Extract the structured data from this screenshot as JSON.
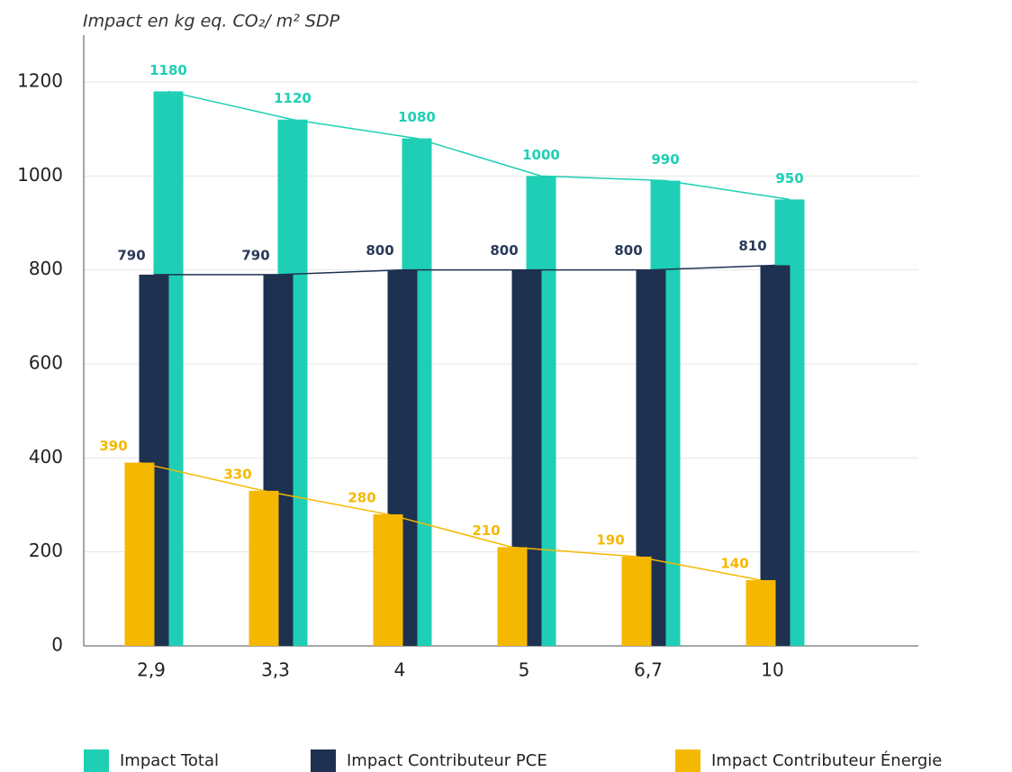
{
  "chart_data": {
    "type": "bar",
    "y_label": "Impact en kg eq. CO₂/ m² SDP",
    "categories": [
      "2,9",
      "3,3",
      "4",
      "5",
      "6,7",
      "10"
    ],
    "series": [
      {
        "name": "Impact Total",
        "color": "#1ecfb5",
        "values": [
          1180,
          1120,
          1080,
          1000,
          990,
          950
        ]
      },
      {
        "name": "Impact Contributeur PCE",
        "color": "#1e3150",
        "values": [
          790,
          790,
          800,
          800,
          800,
          810
        ]
      },
      {
        "name": "Impact Contributeur Énergie",
        "color": "#f5b800",
        "values": [
          390,
          330,
          280,
          210,
          190,
          140
        ]
      }
    ],
    "ylim": [
      0,
      1300
    ],
    "yticks": [
      0,
      200,
      400,
      600,
      800,
      1000,
      1200
    ],
    "grid": true,
    "legend": "bottom",
    "lines": true
  }
}
